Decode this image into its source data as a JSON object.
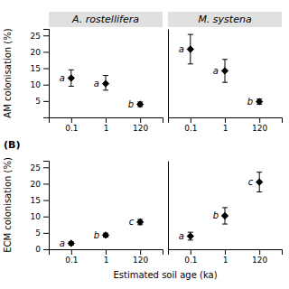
{
  "chart_data": [
    {
      "type": "scatter",
      "title": "A. rostellifera",
      "ylabel": "AM colonisation (%)",
      "categories": [
        "0.1",
        "1",
        "120"
      ],
      "values": [
        12.0,
        10.3,
        4.0
      ],
      "error_minus": [
        2.5,
        2.0,
        0.7
      ],
      "error_plus": [
        2.5,
        2.5,
        0.7
      ],
      "point_labels": [
        "a",
        "a",
        "b"
      ],
      "ylim": [
        0,
        27
      ],
      "yticks": [
        5,
        10,
        15,
        20,
        25
      ],
      "color": "black",
      "marker": "diamond"
    },
    {
      "type": "scatter",
      "title": "M. systena",
      "categories": [
        "0.1",
        "1",
        "120"
      ],
      "values": [
        20.8,
        14.2,
        4.8
      ],
      "error_minus": [
        4.5,
        3.5,
        0.8
      ],
      "error_plus": [
        4.5,
        3.5,
        0.8
      ],
      "point_labels": [
        "a",
        "a",
        "b"
      ],
      "ylim": [
        0,
        27
      ],
      "yticks": [
        5,
        10,
        15,
        20,
        25
      ],
      "tick_labels": "x",
      "color": "black",
      "marker": "diamond"
    },
    {
      "type": "scatter",
      "label": "(B)",
      "ylabel": "ECM colonisation (%)",
      "xlabel": "Estimated soil age (ka)",
      "categories": [
        "0.1",
        "1",
        "120"
      ],
      "values": [
        1.8,
        4.3,
        8.3
      ],
      "error_minus": [
        0.5,
        0.6,
        0.8
      ],
      "error_plus": [
        0.5,
        0.6,
        0.8
      ],
      "point_labels": [
        "a",
        "b",
        "c"
      ],
      "ylim": [
        0,
        27
      ],
      "yticks": [
        0,
        5,
        10,
        15,
        20,
        25
      ],
      "color": "black",
      "marker": "diamond"
    },
    {
      "type": "scatter",
      "categories": [
        "0.1",
        "1",
        "120"
      ],
      "values": [
        4.0,
        10.2,
        20.5
      ],
      "error_minus": [
        1.2,
        2.5,
        3.0
      ],
      "error_plus": [
        1.2,
        2.5,
        3.0
      ],
      "point_labels": [
        "a",
        "b",
        "c"
      ],
      "ylim": [
        0,
        27
      ],
      "yticks": [
        0,
        5,
        10,
        15,
        20,
        25
      ],
      "tick_labels": "x",
      "color": "black",
      "marker": "diamond"
    }
  ]
}
